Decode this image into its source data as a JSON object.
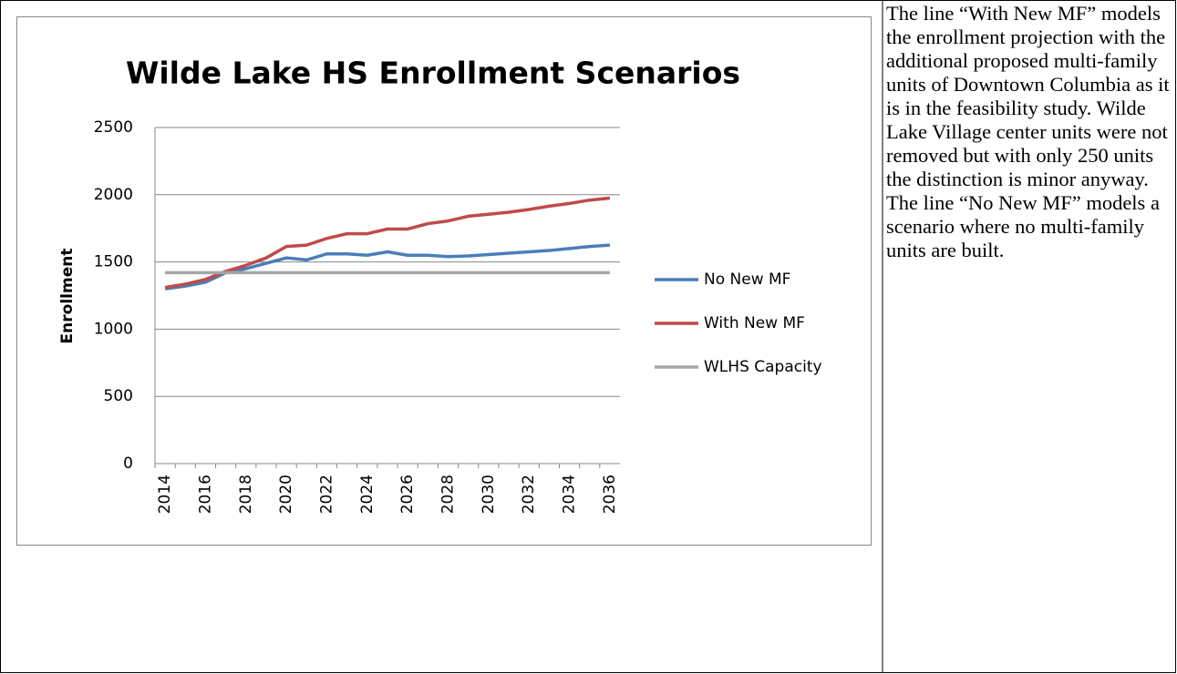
{
  "chart_data": {
    "type": "line",
    "title": "Wilde Lake HS Enrollment Scenarios",
    "y_label": "Enrollment",
    "categories": [
      "2014",
      null,
      "2016",
      null,
      "2018",
      null,
      "2020",
      null,
      "2022",
      null,
      "2024",
      null,
      "2026",
      null,
      "2028",
      null,
      "2030",
      null,
      "2032",
      null,
      "2034",
      null,
      "2036"
    ],
    "series": [
      {
        "name": "No New MF",
        "color": "#4a7ebb",
        "values": [
          1300,
          1320,
          1350,
          1420,
          1450,
          1490,
          1530,
          1515,
          1560,
          1560,
          1550,
          1575,
          1550,
          1550,
          1540,
          1545,
          1555,
          1565,
          1575,
          1585,
          1600,
          1615,
          1625
        ]
      },
      {
        "name": "With New MF",
        "color": "#be4b48",
        "values": [
          1310,
          1335,
          1370,
          1430,
          1475,
          1530,
          1615,
          1625,
          1675,
          1710,
          1710,
          1745,
          1745,
          1785,
          1805,
          1840,
          1855,
          1870,
          1890,
          1915,
          1935,
          1960,
          1975
        ]
      },
      {
        "name": "WLHS Capacity",
        "color": "#a6a6a6",
        "values": [
          1420,
          1420,
          1420,
          1420,
          1420,
          1420,
          1420,
          1420,
          1420,
          1420,
          1420,
          1420,
          1420,
          1420,
          1420,
          1420,
          1420,
          1420,
          1420,
          1420,
          1420,
          1420,
          1420
        ]
      }
    ],
    "ylim": [
      0,
      2500
    ],
    "yticks": [
      0,
      500,
      1000,
      1500,
      2000,
      2500
    ],
    "grid": true,
    "legend": "right"
  },
  "text": "The line “With New MF” models the enrollment projection with the additional proposed multi-family units of Downtown Columbia as it is in the feasibility study. Wilde Lake Village center units were not removed but with only 250 units the distinction is minor anyway. The line “No New MF” models a scenario where no multi-family units are built."
}
